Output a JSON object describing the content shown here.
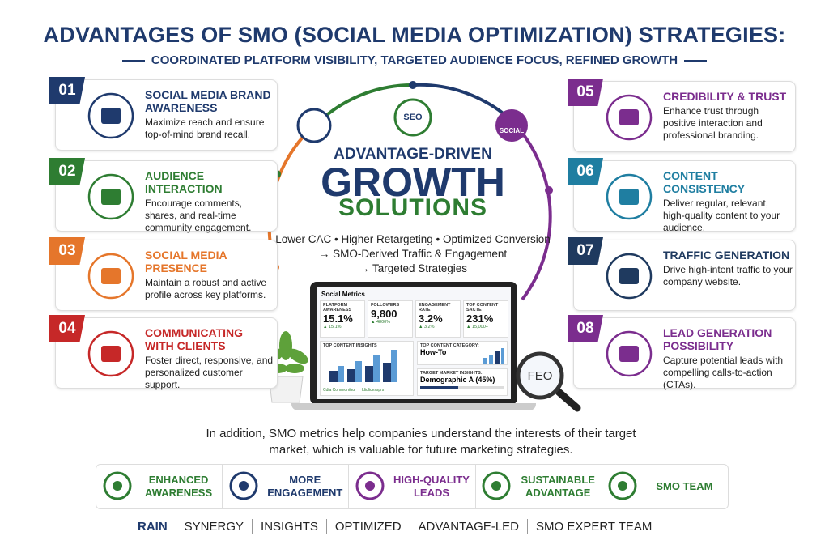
{
  "header": {
    "title": "ADVANTAGES OF SMO (SOCIAL MEDIA OPTIMIZATION) STRATEGIES:",
    "subtitle": "COORDINATED PLATFORM VISIBILITY, TARGETED AUDIENCE FOCUS, REFINED GROWTH"
  },
  "left_cards": [
    {
      "number": "01",
      "title": "SOCIAL MEDIA BRAND AWARENESS",
      "text": "Maximize reach and ensure top-of-mind brand recall.",
      "color": "#1f3a6d"
    },
    {
      "number": "02",
      "title": "AUDIENCE INTERACTION",
      "text": "Encourage comments, shares, and real-time community engagement.",
      "color": "#2e7d32"
    },
    {
      "number": "03",
      "title": "SOCIAL MEDIA PRESENCE",
      "text": "Maintain a robust and active profile across key platforms.",
      "color": "#e5762b"
    },
    {
      "number": "04",
      "title": "COMMUNICATING WITH CLIENTS",
      "text": "Foster direct, responsive, and personalized customer support.",
      "color": "#c62828"
    }
  ],
  "right_cards": [
    {
      "number": "05",
      "title": "CREDIBILITY & TRUST",
      "text": "Enhance trust through positive interaction and professional branding.",
      "color": "#7b2d8e"
    },
    {
      "number": "06",
      "title": "CONTENT CONSISTENCY",
      "text": "Deliver regular, relevant, high-quality content to your audience.",
      "color": "#1f7ea1"
    },
    {
      "number": "07",
      "title": "TRAFFIC GENERATION",
      "text": "Drive high-intent traffic to your company website.",
      "color": "#1f3a5f"
    },
    {
      "number": "08",
      "title": "LEAD GENERATION POSSIBILITY",
      "text": "Capture potential leads with compelling calls-to-action (CTAs).",
      "color": "#7b2d8e"
    }
  ],
  "center": {
    "badges": [
      "SEO",
      "SOCIAL"
    ],
    "kicker": "ADVANTAGE-DRIVEN",
    "headline": "GROWTH",
    "subhead": "SOLUTIONS",
    "benefits": [
      "Lower CAC • Higher Retargeting • Optimized Conversion",
      "→ SMO-Derived Traffic & Engagement",
      "→ Targeted Strategies"
    ]
  },
  "dashboard": {
    "title": "Social Metrics",
    "metrics": [
      {
        "label": "PLATFORM AWARENESS",
        "value": "15.1%",
        "change": "▲ 15.1%"
      },
      {
        "label": "FOLLOWERS",
        "value": "9,800",
        "change": "▲ 4800%"
      },
      {
        "label": "ENGAGEMENT RATE",
        "value": "3.2%",
        "change": "▲ 3.2%"
      },
      {
        "label": "TOP CONTENT SACTE",
        "value": "231%",
        "change": "▲ 15,000+"
      }
    ],
    "insights_label": "TOP CONTENT INSIGHTS",
    "legend": [
      "Cdia Commonitez",
      "Idiulicessprs"
    ],
    "category_label": "TOP CONTENT CATEGORY:",
    "category": "How-To",
    "market_label": "TARGET MARKET INSIGHTS:",
    "market": "Demographic A (45%)"
  },
  "magnifier": "FEO",
  "summary": "In addition, SMO metrics help companies understand the interests of their target market, which is valuable for future marketing strategies.",
  "benefit_badges": [
    {
      "text": "ENHANCED AWARENESS",
      "color": "#2e7d32"
    },
    {
      "text": "MORE ENGAGEMENT",
      "color": "#1f3a6d"
    },
    {
      "text": "HIGH-QUALITY LEADS",
      "color": "#7b2d8e"
    },
    {
      "text": "SUSTAINABLE ADVANTAGE",
      "color": "#2e7d32"
    },
    {
      "text": "SMO TEAM",
      "color": "#2e7d32"
    }
  ],
  "brand_bar": [
    "RAIN",
    "SYNERGY",
    "INSIGHTS",
    "OPTIMIZED",
    "ADVANTAGE-LED",
    "SMO EXPERT TEAM"
  ]
}
